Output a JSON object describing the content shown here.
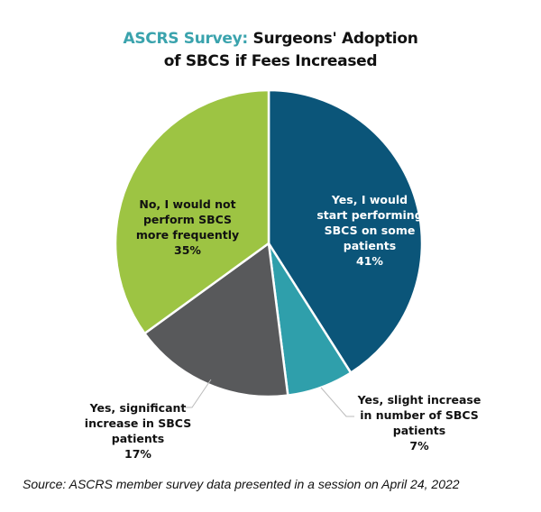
{
  "chart_data": {
    "type": "pie",
    "title_highlight": "ASCRS Survey:",
    "title_rest_line1": "Surgeons' Adoption",
    "title_line2": "of SBCS if Fees Increased",
    "start_angle": "12 o'clock",
    "direction": "clockwise",
    "slices": [
      {
        "label_lines": [
          "Yes, I would",
          "start performing",
          "SBCS on some",
          "patients"
        ],
        "pct_label": "41%",
        "value": 41,
        "color": "#0b5579"
      },
      {
        "label_lines": [
          "Yes, slight increase",
          "in number of SBCS",
          "patients"
        ],
        "pct_label": "7%",
        "value": 7,
        "color": "#2f9fab"
      },
      {
        "label_lines": [
          "Yes, significant",
          "increase in SBCS",
          "patients"
        ],
        "pct_label": "17%",
        "value": 17,
        "color": "#58595b"
      },
      {
        "label_lines": [
          "No, I would not",
          "perform SBCS",
          "more frequently"
        ],
        "pct_label": "35%",
        "value": 35,
        "color": "#9dc443"
      }
    ],
    "title_highlight_color": "#3aa3ad"
  },
  "source": "Source: ASCRS member survey data presented in a session on April 24, 2022"
}
